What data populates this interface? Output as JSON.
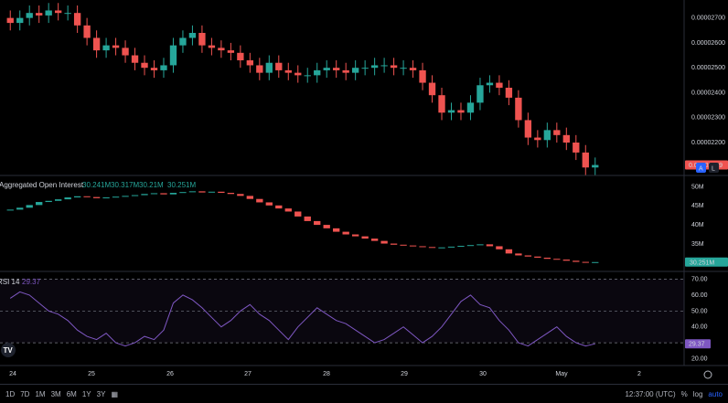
{
  "chart_data": [
    {
      "type": "candlestick",
      "ylim": [
        2.09e-05,
        2.75e-05
      ],
      "y_ticks": [
        "0.00002700",
        "0.00002600",
        "0.00002500",
        "0.00002400",
        "0.00002300",
        "0.00002200"
      ],
      "last_price_label": "0.00002109",
      "closes": [
        2.68e-05,
        2.7e-05,
        2.72e-05,
        2.71e-05,
        2.73e-05,
        2.72e-05,
        2.72e-05,
        2.67e-05,
        2.62e-05,
        2.57e-05,
        2.59e-05,
        2.58e-05,
        2.55e-05,
        2.52e-05,
        2.5e-05,
        2.49e-05,
        2.51e-05,
        2.59e-05,
        2.62e-05,
        2.64e-05,
        2.59e-05,
        2.58e-05,
        2.57e-05,
        2.56e-05,
        2.53e-05,
        2.51e-05,
        2.48e-05,
        2.52e-05,
        2.49e-05,
        2.48e-05,
        2.47e-05,
        2.47e-05,
        2.49e-05,
        2.5e-05,
        2.49e-05,
        2.48e-05,
        2.5e-05,
        2.5e-05,
        2.51e-05,
        2.51e-05,
        2.5e-05,
        2.5e-05,
        2.49e-05,
        2.44e-05,
        2.39e-05,
        2.32e-05,
        2.33e-05,
        2.32e-05,
        2.36e-05,
        2.43e-05,
        2.44e-05,
        2.42e-05,
        2.38e-05,
        2.29e-05,
        2.22e-05,
        2.21e-05,
        2.25e-05,
        2.23e-05,
        2.2e-05,
        2.16e-05,
        2.1e-05,
        2.11e-05
      ],
      "x_ticks": [
        "24",
        "25",
        "26",
        "27",
        "28",
        "29",
        "30",
        "May",
        "2"
      ],
      "price_axis_buttons": [
        "A",
        "L"
      ]
    },
    {
      "type": "bar",
      "title": "Aggregated Open Interest",
      "legend_values": [
        "30.241M",
        "30.317M",
        "30.21M",
        "30.251M"
      ],
      "y_ticks": [
        "50M",
        "45M",
        "40M",
        "35M"
      ],
      "ylim": [
        29000000,
        52000000
      ],
      "last_value_label": "30.251M",
      "values": [
        44.0,
        44.5,
        45.2,
        46.0,
        46.3,
        46.7,
        47.2,
        47.5,
        47.3,
        47.0,
        47.2,
        47.4,
        47.6,
        47.8,
        48.1,
        48.3,
        48.0,
        48.4,
        48.6,
        48.8,
        48.5,
        48.7,
        48.4,
        48.1,
        47.6,
        46.8,
        45.9,
        45.1,
        44.3,
        43.5,
        42.2,
        41.0,
        40.0,
        39.1,
        38.2,
        37.5,
        37.0,
        36.4,
        35.8,
        35.1,
        34.8,
        34.6,
        34.4,
        34.2,
        34.0,
        34.1,
        34.3,
        34.5,
        34.7,
        34.9,
        34.4,
        33.6,
        32.5,
        32.0,
        31.7,
        31.4,
        31.1,
        30.9,
        30.6,
        30.3,
        30.25,
        30.25
      ]
    },
    {
      "type": "line",
      "title": "RSI 14",
      "value_label": "29.37",
      "y_ticks": [
        "70.00",
        "60.00",
        "50.00",
        "40.00",
        "30.00",
        "20.00"
      ],
      "ylim": [
        18,
        72
      ],
      "levels": [
        70,
        50,
        30
      ],
      "values": [
        58,
        62,
        60,
        55,
        50,
        48,
        44,
        38,
        34,
        32,
        36,
        30,
        28,
        30,
        34,
        32,
        38,
        55,
        60,
        57,
        52,
        46,
        40,
        44,
        50,
        54,
        48,
        44,
        38,
        32,
        40,
        46,
        52,
        48,
        44,
        42,
        38,
        34,
        30,
        32,
        36,
        40,
        35,
        30,
        34,
        40,
        48,
        56,
        60,
        54,
        52,
        44,
        38,
        30,
        28,
        32,
        36,
        40,
        34,
        30,
        28,
        29.37
      ],
      "color": "#7e57c2"
    }
  ],
  "toolbar": {
    "ranges": [
      "1D",
      "7D",
      "1M",
      "3M",
      "6M",
      "1Y",
      "3Y"
    ],
    "time": "12:37:00 (UTC)",
    "percent": "%",
    "log": "log",
    "auto": "auto"
  },
  "logo": "TV"
}
